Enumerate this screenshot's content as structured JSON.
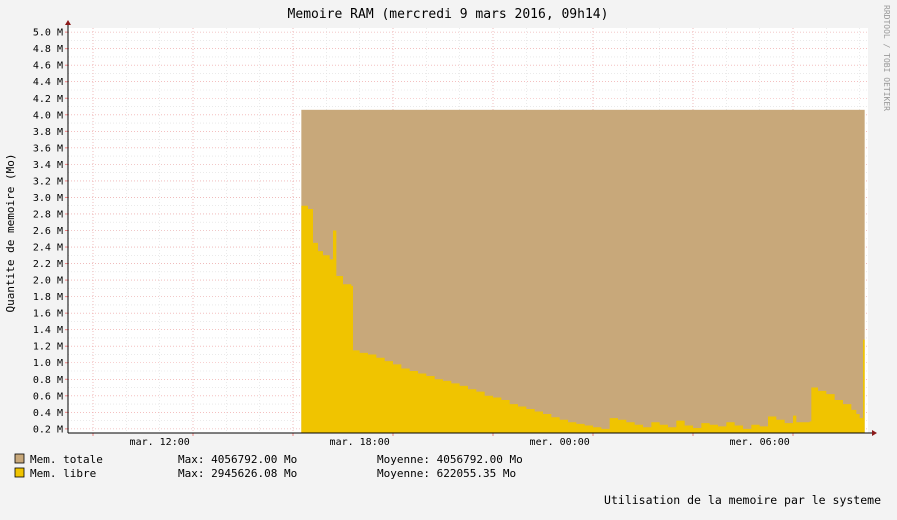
{
  "chart_data": {
    "type": "area",
    "title": "Memoire RAM (mercredi  9 mars 2016, 09h14)",
    "ylabel": "Quantite de memoire (Mo)",
    "xlabel": "",
    "side_label": "RRDTOOL / TOBI OETIKER",
    "footer": "Utilisation de la memoire par le systeme",
    "ylim": [
      0.15,
      5.05
    ],
    "y_ticks": [
      {
        "v": 0.2,
        "label": "0.2 M"
      },
      {
        "v": 0.4,
        "label": "0.4 M"
      },
      {
        "v": 0.6,
        "label": "0.6 M"
      },
      {
        "v": 0.8,
        "label": "0.8 M"
      },
      {
        "v": 1.0,
        "label": "1.0 M"
      },
      {
        "v": 1.2,
        "label": "1.2 M"
      },
      {
        "v": 1.4,
        "label": "1.4 M"
      },
      {
        "v": 1.6,
        "label": "1.6 M"
      },
      {
        "v": 1.8,
        "label": "1.8 M"
      },
      {
        "v": 2.0,
        "label": "2.0 M"
      },
      {
        "v": 2.2,
        "label": "2.2 M"
      },
      {
        "v": 2.4,
        "label": "2.4 M"
      },
      {
        "v": 2.6,
        "label": "2.6 M"
      },
      {
        "v": 2.8,
        "label": "2.8 M"
      },
      {
        "v": 3.0,
        "label": "3.0 M"
      },
      {
        "v": 3.2,
        "label": "3.2 M"
      },
      {
        "v": 3.4,
        "label": "3.4 M"
      },
      {
        "v": 3.6,
        "label": "3.6 M"
      },
      {
        "v": 3.8,
        "label": "3.8 M"
      },
      {
        "v": 4.0,
        "label": "4.0 M"
      },
      {
        "v": 4.2,
        "label": "4.2 M"
      },
      {
        "v": 4.4,
        "label": "4.4 M"
      },
      {
        "v": 4.6,
        "label": "4.6 M"
      },
      {
        "v": 4.8,
        "label": "4.8 M"
      },
      {
        "v": 5.0,
        "label": "5.0 M"
      }
    ],
    "x_unit": "hours since mar. 09:15",
    "xlim": [
      0,
      24
    ],
    "x_ticks": [
      {
        "v": 2.75,
        "label": "mar. 12:00"
      },
      {
        "v": 8.75,
        "label": "mar. 18:00"
      },
      {
        "v": 14.75,
        "label": "mer. 00:00"
      },
      {
        "v": 20.75,
        "label": "mer. 06:00"
      }
    ],
    "series": [
      {
        "name": "Mem. totale",
        "color": "#c8a87a",
        "x_start": 7.0,
        "x_end": 23.9,
        "value": 4.06
      },
      {
        "name": "Mem. libre",
        "color": "#f0c400",
        "points": [
          [
            7.0,
            2.9
          ],
          [
            7.2,
            2.86
          ],
          [
            7.35,
            2.45
          ],
          [
            7.5,
            2.35
          ],
          [
            7.65,
            2.3
          ],
          [
            7.85,
            2.25
          ],
          [
            7.95,
            2.6
          ],
          [
            8.05,
            2.05
          ],
          [
            8.25,
            1.95
          ],
          [
            8.5,
            1.93
          ],
          [
            8.55,
            1.15
          ],
          [
            8.75,
            1.12
          ],
          [
            9.0,
            1.1
          ],
          [
            9.25,
            1.06
          ],
          [
            9.5,
            1.02
          ],
          [
            9.75,
            0.98
          ],
          [
            10.0,
            0.93
          ],
          [
            10.25,
            0.9
          ],
          [
            10.5,
            0.87
          ],
          [
            10.75,
            0.84
          ],
          [
            11.0,
            0.8
          ],
          [
            11.25,
            0.78
          ],
          [
            11.5,
            0.75
          ],
          [
            11.75,
            0.72
          ],
          [
            12.0,
            0.68
          ],
          [
            12.25,
            0.65
          ],
          [
            12.5,
            0.6
          ],
          [
            12.75,
            0.58
          ],
          [
            13.0,
            0.55
          ],
          [
            13.25,
            0.5
          ],
          [
            13.5,
            0.47
          ],
          [
            13.75,
            0.44
          ],
          [
            14.0,
            0.41
          ],
          [
            14.25,
            0.38
          ],
          [
            14.5,
            0.34
          ],
          [
            14.75,
            0.31
          ],
          [
            15.0,
            0.28
          ],
          [
            15.25,
            0.26
          ],
          [
            15.5,
            0.24
          ],
          [
            15.75,
            0.22
          ],
          [
            16.0,
            0.2
          ],
          [
            16.25,
            0.33
          ],
          [
            16.5,
            0.31
          ],
          [
            16.75,
            0.28
          ],
          [
            17.0,
            0.25
          ],
          [
            17.25,
            0.22
          ],
          [
            17.5,
            0.28
          ],
          [
            17.75,
            0.25
          ],
          [
            18.0,
            0.22
          ],
          [
            18.25,
            0.3
          ],
          [
            18.5,
            0.24
          ],
          [
            18.75,
            0.21
          ],
          [
            19.0,
            0.27
          ],
          [
            19.25,
            0.25
          ],
          [
            19.5,
            0.23
          ],
          [
            19.75,
            0.28
          ],
          [
            20.0,
            0.24
          ],
          [
            20.25,
            0.2
          ],
          [
            20.5,
            0.25
          ],
          [
            20.75,
            0.23
          ],
          [
            21.0,
            0.35
          ],
          [
            21.25,
            0.31
          ],
          [
            21.5,
            0.27
          ],
          [
            21.75,
            0.36
          ],
          [
            21.85,
            0.28
          ],
          [
            22.25,
            0.29
          ],
          [
            22.3,
            0.7
          ],
          [
            22.5,
            0.66
          ],
          [
            22.75,
            0.62
          ],
          [
            23.0,
            0.55
          ],
          [
            23.25,
            0.5
          ],
          [
            23.5,
            0.43
          ],
          [
            23.65,
            0.38
          ],
          [
            23.75,
            0.33
          ],
          [
            23.85,
            1.28
          ],
          [
            23.9,
            1.28
          ]
        ]
      }
    ]
  },
  "legend": [
    {
      "name": "Mem. totale",
      "color": "#c8a87a",
      "max": "Max: 4056792.00 Mo",
      "avg": "Moyenne: 4056792.00 Mo"
    },
    {
      "name": "Mem. libre",
      "color": "#f0c400",
      "max": "Max: 2945626.08 Mo",
      "avg": "Moyenne: 622055.35 Mo"
    }
  ]
}
